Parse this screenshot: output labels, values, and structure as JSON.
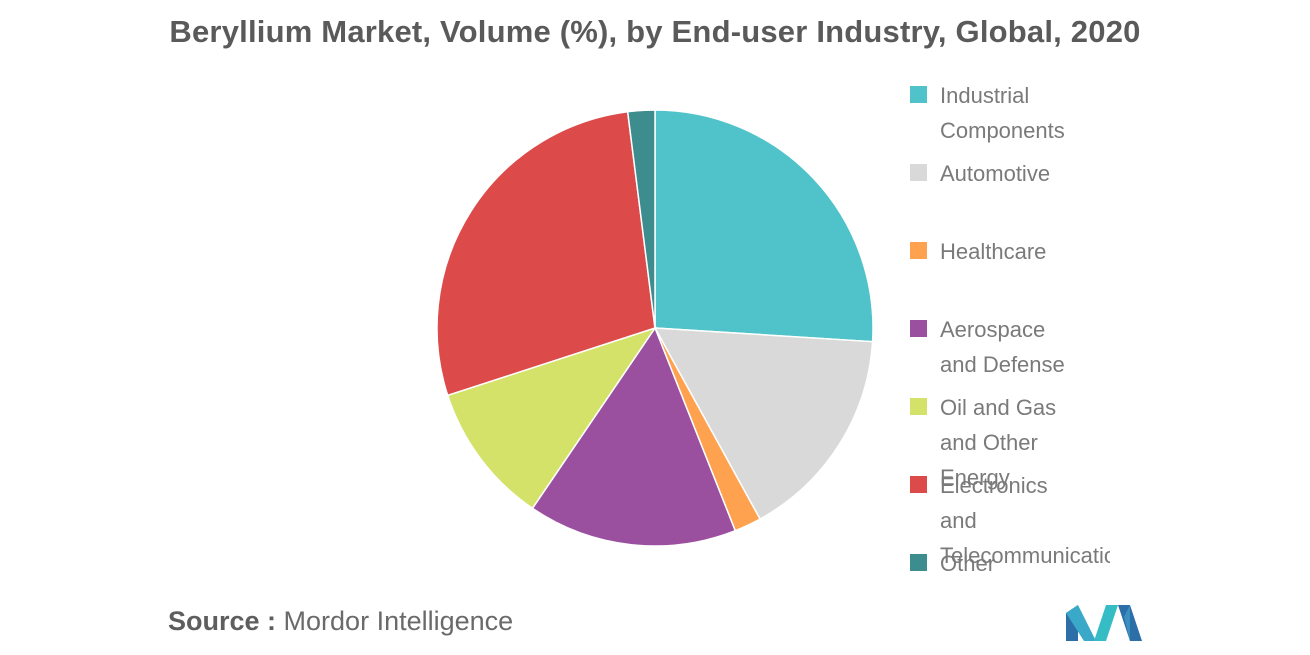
{
  "chart_data": {
    "type": "pie",
    "title": "Beryllium Market, Volume (%), by End-user Industry, Global, 2020",
    "slices": [
      {
        "label": "Industrial Components",
        "value": 26,
        "color": "#4fc3c9"
      },
      {
        "label": "Automotive",
        "value": 16,
        "color": "#d9d9d9"
      },
      {
        "label": "Healthcare",
        "value": 2,
        "color": "#ffa24f"
      },
      {
        "label": "Aerospace and Defense",
        "value": 15.5,
        "color": "#9b4f9f"
      },
      {
        "label": "Oil and Gas and Other Energy",
        "value": 10.5,
        "color": "#d4e26a"
      },
      {
        "label": "Electronics and Telecommunication",
        "value": 28,
        "color": "#dc4a4a"
      },
      {
        "label": "Other",
        "value": 2,
        "color": "#3d8c8e"
      }
    ],
    "legend_position": "right"
  },
  "source": {
    "prefix": "Source :",
    "name": "Mordor Intelligence"
  }
}
